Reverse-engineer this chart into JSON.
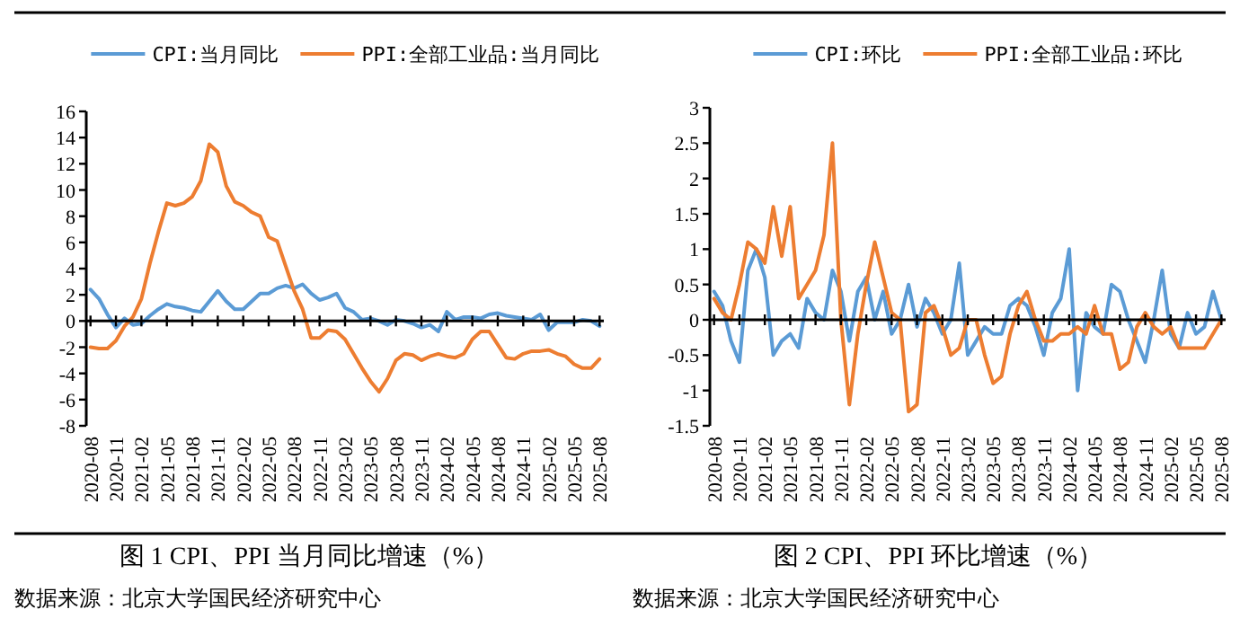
{
  "chart_data": [
    {
      "type": "line",
      "title": "图 1 CPI、PPI 当月同比增速（%）",
      "annotations": [
        "数据来源：北京大学国民经济研究中心"
      ],
      "legend": "top",
      "marker": "none",
      "line_style": "solid",
      "categories": [
        "2020-08",
        null,
        null,
        "2020-11",
        null,
        null,
        "2021-02",
        null,
        null,
        "2021-05",
        null,
        null,
        "2021-08",
        null,
        null,
        "2021-11",
        null,
        null,
        "2022-02",
        null,
        null,
        "2022-05",
        null,
        null,
        "2022-08",
        null,
        null,
        "2022-11",
        null,
        null,
        "2023-02",
        null,
        null,
        "2023-05",
        null,
        null,
        "2023-08",
        null,
        null,
        "2023-11",
        null,
        null,
        "2024-02",
        null,
        null,
        "2024-05",
        null,
        null,
        "2024-08",
        null,
        null,
        "2024-11",
        null,
        null,
        "2025-02",
        null,
        null,
        "2025-05",
        null,
        null,
        "2025-08"
      ],
      "ylim": [
        -8,
        16
      ],
      "yticks": [
        -8,
        -6,
        -4,
        -2,
        0,
        2,
        4,
        6,
        8,
        10,
        12,
        14,
        16
      ],
      "series": [
        {
          "name": "CPI:当月同比",
          "color": "#5b9bd5",
          "values": [
            2.4,
            1.7,
            0.5,
            -0.5,
            0.2,
            -0.3,
            -0.2,
            0.4,
            0.9,
            1.3,
            1.1,
            1.0,
            0.8,
            0.7,
            1.5,
            2.3,
            1.5,
            0.9,
            0.9,
            1.5,
            2.1,
            2.1,
            2.5,
            2.7,
            2.5,
            2.8,
            2.1,
            1.6,
            1.8,
            2.1,
            1.0,
            0.7,
            0.1,
            0.2,
            0.0,
            -0.3,
            0.1,
            0.0,
            -0.2,
            -0.5,
            -0.3,
            -0.8,
            0.7,
            0.1,
            0.3,
            0.3,
            0.2,
            0.5,
            0.6,
            0.4,
            0.3,
            0.2,
            0.1,
            0.5,
            -0.7,
            -0.1,
            -0.1,
            -0.1,
            0.1,
            0.0,
            -0.4
          ]
        },
        {
          "name": "PPI:全部工业品:当月同比",
          "color": "#ed7d31",
          "values": [
            -2.0,
            -2.1,
            -2.1,
            -1.5,
            -0.4,
            0.3,
            1.7,
            4.4,
            6.8,
            9.0,
            8.8,
            9.0,
            9.5,
            10.7,
            13.5,
            12.9,
            10.3,
            9.1,
            8.8,
            8.3,
            8.0,
            6.4,
            6.1,
            4.2,
            2.3,
            0.9,
            -1.3,
            -1.3,
            -0.7,
            -0.8,
            -1.4,
            -2.5,
            -3.6,
            -4.6,
            -5.4,
            -4.4,
            -3.0,
            -2.5,
            -2.6,
            -3.0,
            -2.7,
            -2.5,
            -2.7,
            -2.8,
            -2.5,
            -1.4,
            -0.8,
            -0.8,
            -1.8,
            -2.8,
            -2.9,
            -2.5,
            -2.3,
            -2.3,
            -2.2,
            -2.5,
            -2.7,
            -3.3,
            -3.6,
            -3.6,
            -2.9
          ]
        }
      ]
    },
    {
      "type": "line",
      "title": "图 2 CPI、PPI 环比增速（%）",
      "annotations": [
        "数据来源：北京大学国民经济研究中心"
      ],
      "legend": "top",
      "marker": "none",
      "line_style": "solid",
      "categories": [
        "2020-08",
        null,
        null,
        "2020-11",
        null,
        null,
        "2021-02",
        null,
        null,
        "2021-05",
        null,
        null,
        "2021-08",
        null,
        null,
        "2021-11",
        null,
        null,
        "2022-02",
        null,
        null,
        "2022-05",
        null,
        null,
        "2022-08",
        null,
        null,
        "2022-11",
        null,
        null,
        "2023-02",
        null,
        null,
        "2023-05",
        null,
        null,
        "2023-08",
        null,
        null,
        "2023-11",
        null,
        null,
        "2024-02",
        null,
        null,
        "2024-05",
        null,
        null,
        "2024-08",
        null,
        null,
        "2024-11",
        null,
        null,
        "2025-02",
        null,
        null,
        "2025-05",
        null,
        null,
        "2025-08"
      ],
      "ylim": [
        -1.5,
        3
      ],
      "yticks": [
        -1.5,
        -1,
        -0.5,
        0,
        0.5,
        1,
        1.5,
        2,
        2.5,
        3
      ],
      "series": [
        {
          "name": "CPI:环比",
          "color": "#5b9bd5",
          "values": [
            0.4,
            0.2,
            -0.3,
            -0.6,
            0.7,
            1.0,
            0.6,
            -0.5,
            -0.3,
            -0.2,
            -0.4,
            0.3,
            0.1,
            0.0,
            0.7,
            0.4,
            -0.3,
            0.4,
            0.6,
            0.0,
            0.4,
            -0.2,
            0.0,
            0.5,
            -0.1,
            0.3,
            0.1,
            -0.2,
            0.0,
            0.8,
            -0.5,
            -0.3,
            -0.1,
            -0.2,
            -0.2,
            0.2,
            0.3,
            0.2,
            -0.1,
            -0.5,
            0.1,
            0.3,
            1.0,
            -1.0,
            0.1,
            -0.1,
            -0.2,
            0.5,
            0.4,
            0.0,
            -0.3,
            -0.6,
            0.0,
            0.7,
            -0.2,
            -0.4,
            0.1,
            -0.2,
            -0.1,
            0.4,
            0.0
          ]
        },
        {
          "name": "PPI:全部工业品:环比",
          "color": "#ed7d31",
          "values": [
            0.3,
            0.1,
            0.0,
            0.5,
            1.1,
            1.0,
            0.8,
            1.6,
            0.9,
            1.6,
            0.3,
            0.5,
            0.7,
            1.2,
            2.5,
            0.0,
            -1.2,
            -0.2,
            0.5,
            1.1,
            0.6,
            0.1,
            0.0,
            -1.3,
            -1.2,
            0.1,
            0.2,
            -0.1,
            -0.5,
            -0.4,
            0.0,
            0.0,
            -0.5,
            -0.9,
            -0.8,
            -0.2,
            0.2,
            0.4,
            0.0,
            -0.3,
            -0.3,
            -0.2,
            -0.2,
            -0.1,
            -0.2,
            0.2,
            -0.2,
            -0.2,
            -0.7,
            -0.6,
            -0.1,
            0.1,
            -0.1,
            -0.2,
            -0.1,
            -0.4,
            -0.4,
            -0.4,
            -0.4,
            -0.2,
            0.0
          ]
        }
      ]
    }
  ]
}
